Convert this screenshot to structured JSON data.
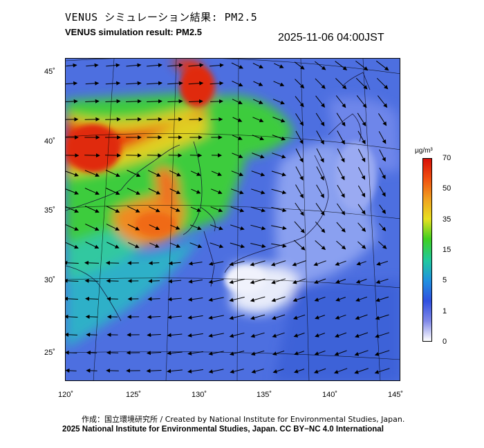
{
  "header": {
    "title_ja": "VENUS シミュレーション結果: PM2.5",
    "title_en": "VENUS simulation result: PM2.5",
    "timestamp": "2025-11-06 04:00JST"
  },
  "map": {
    "lat_labels": [
      "45˚",
      "40˚",
      "35˚",
      "30˚",
      "25˚"
    ],
    "lon_labels": [
      "120˚",
      "125˚",
      "130˚",
      "135˚",
      "140˚",
      "145˚"
    ],
    "palette": {
      "ocean_low": "#6f86e8",
      "ocean_mid": "#4a6fe0",
      "land_low": "#8aa0f0",
      "clean": "#e8ecfa",
      "moderate": "#2fc8b0",
      "green": "#3ccc3c",
      "yellow": "#e8d020",
      "orange": "#f08a20",
      "red": "#e03010"
    }
  },
  "colorbar": {
    "unit": "µg/m³",
    "ticks": [
      "70",
      "50",
      "35",
      "15",
      "5",
      "1",
      "0"
    ],
    "colors": [
      "#d81008",
      "#f05010",
      "#f0a020",
      "#e8e020",
      "#40d020",
      "#20c8a0",
      "#2090e0",
      "#3050e0",
      "#8088e8",
      "#ffffff"
    ]
  },
  "footer": {
    "credit_line_1": "作成：国立環境研究所 / Created by National Institute for Environmental Studies, Japan.",
    "credit_line_2": "2025 National Institute for Environmental Studies, Japan. CC BY−NC 4.0 International"
  }
}
